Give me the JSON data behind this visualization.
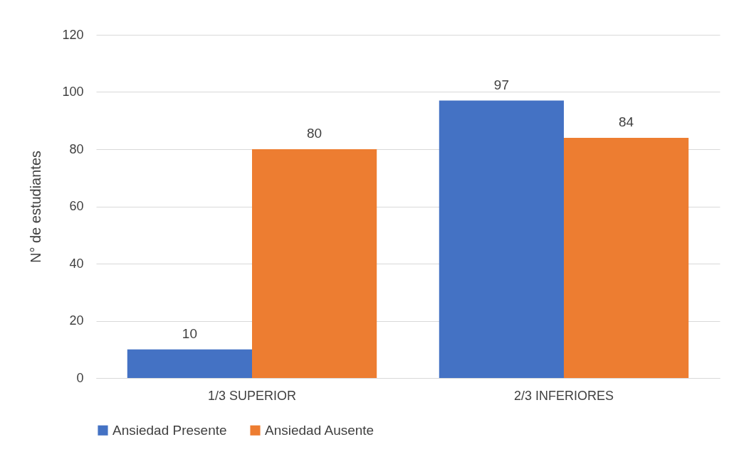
{
  "chart_data": {
    "type": "bar",
    "ylabel": "N° de estudiantes",
    "categories": [
      "1/3 SUPERIOR",
      "2/3 INFERIORES"
    ],
    "series": [
      {
        "name": "Ansiedad Presente",
        "color": "#4472c4",
        "values": [
          10,
          97
        ]
      },
      {
        "name": "Ansiedad Ausente",
        "color": "#ed7d31",
        "values": [
          80,
          84
        ]
      }
    ],
    "ylim": [
      0,
      120
    ],
    "yticks": [
      0,
      20,
      40,
      60,
      80,
      100,
      120
    ],
    "grid": "y",
    "legend": "bottom",
    "data_labels": true
  }
}
